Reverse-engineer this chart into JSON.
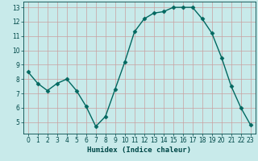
{
  "x": [
    0,
    1,
    2,
    3,
    4,
    5,
    6,
    7,
    8,
    9,
    10,
    11,
    12,
    13,
    14,
    15,
    16,
    17,
    18,
    19,
    20,
    21,
    22,
    23
  ],
  "y": [
    8.5,
    7.7,
    7.2,
    7.7,
    8.0,
    7.2,
    6.1,
    4.7,
    5.4,
    7.3,
    9.2,
    11.3,
    12.2,
    12.6,
    12.7,
    13.0,
    13.0,
    13.0,
    12.2,
    11.2,
    9.5,
    7.5,
    6.0,
    4.8
  ],
  "line_color": "#006860",
  "marker": "D",
  "markersize": 2.5,
  "linewidth": 1.0,
  "bg_color": "#c8eaea",
  "plot_bg_color": "#c8eaea",
  "grid_color": "#c8a0a0",
  "xlabel": "Humidex (Indice chaleur)",
  "xlim": [
    -0.5,
    23.5
  ],
  "ylim": [
    4.2,
    13.4
  ],
  "yticks": [
    5,
    6,
    7,
    8,
    9,
    10,
    11,
    12,
    13
  ],
  "xticks": [
    0,
    1,
    2,
    3,
    4,
    5,
    6,
    7,
    8,
    9,
    10,
    11,
    12,
    13,
    14,
    15,
    16,
    17,
    18,
    19,
    20,
    21,
    22,
    23
  ],
  "tick_color": "#004848",
  "label_color": "#004848",
  "xlabel_fontsize": 6.5,
  "tick_fontsize": 5.5
}
